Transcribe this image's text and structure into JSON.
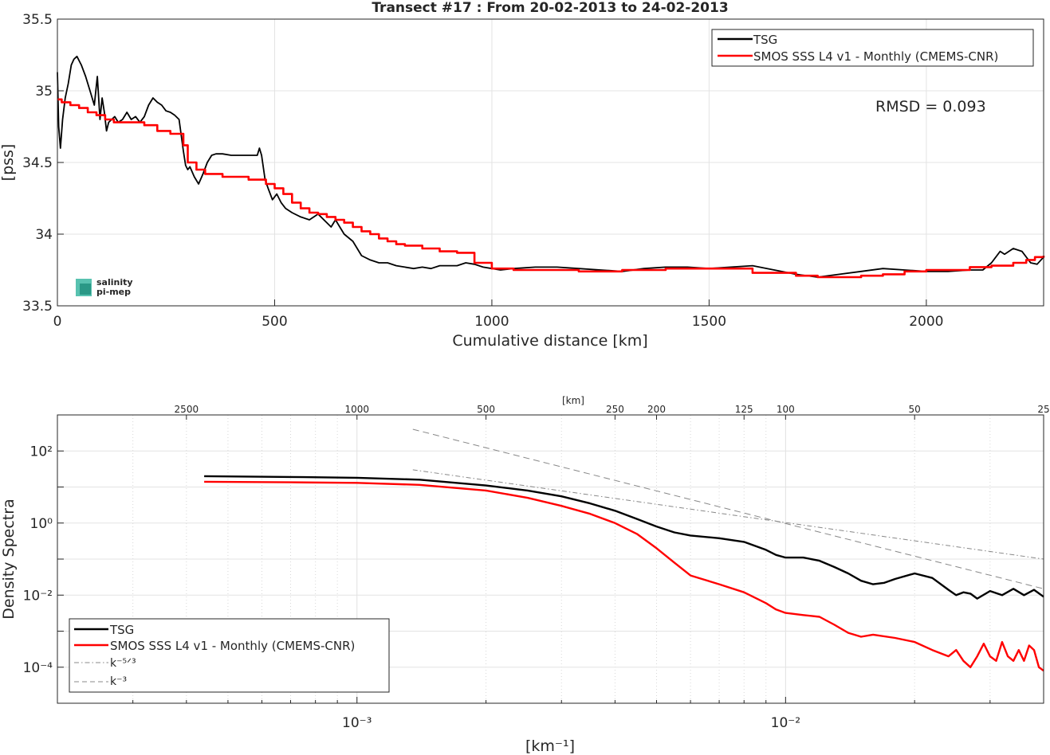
{
  "chart_data": [
    {
      "type": "line",
      "title": "Transect #17 : From 20-02-2013 to 24-02-2013",
      "xlabel": "Cumulative distance [km]",
      "ylabel": "[pss]",
      "xlim": [
        0,
        2270
      ],
      "ylim": [
        33.5,
        35.5
      ],
      "xticks": [
        0,
        500,
        1000,
        1500,
        2000
      ],
      "xtick_labels": [
        "0",
        "500",
        "1000",
        "1500",
        "2000"
      ],
      "yticks": [
        33.5,
        34,
        34.5,
        35,
        35.5
      ],
      "ytick_labels": [
        "33.5",
        "34",
        "34.5",
        "35",
        "35.5"
      ],
      "grid": true,
      "legend_position": "top-right",
      "annotation": "RMSD = 0.093",
      "logo_lines": [
        "salinity",
        "pi-mep"
      ],
      "series": [
        {
          "name": "TSG",
          "color": "#000000",
          "step": false,
          "x": [
            0,
            3,
            7,
            12,
            18,
            25,
            32,
            38,
            45,
            55,
            65,
            75,
            85,
            92,
            98,
            103,
            108,
            113,
            118,
            125,
            132,
            140,
            150,
            160,
            170,
            180,
            190,
            200,
            210,
            220,
            230,
            240,
            250,
            260,
            270,
            280,
            290,
            295,
            300,
            305,
            315,
            325,
            335,
            345,
            355,
            365,
            380,
            400,
            420,
            440,
            460,
            465,
            470,
            478,
            485,
            495,
            505,
            515,
            525,
            540,
            560,
            580,
            600,
            620,
            630,
            640,
            650,
            660,
            680,
            700,
            720,
            740,
            760,
            780,
            800,
            820,
            840,
            860,
            880,
            900,
            920,
            940,
            960,
            980,
            1000,
            1020,
            1050,
            1100,
            1150,
            1200,
            1250,
            1300,
            1350,
            1400,
            1450,
            1500,
            1550,
            1600,
            1650,
            1700,
            1750,
            1800,
            1850,
            1900,
            1950,
            2000,
            2050,
            2100,
            2130,
            2150,
            2170,
            2180,
            2200,
            2220,
            2240,
            2255,
            2270
          ],
          "y": [
            35.13,
            34.75,
            34.6,
            34.8,
            34.95,
            35.05,
            35.18,
            35.22,
            35.24,
            35.18,
            35.1,
            35.0,
            34.9,
            35.1,
            34.8,
            34.95,
            34.85,
            34.72,
            34.78,
            34.8,
            34.82,
            34.78,
            34.8,
            34.85,
            34.8,
            34.82,
            34.78,
            34.82,
            34.9,
            34.95,
            34.92,
            34.9,
            34.86,
            34.85,
            34.83,
            34.8,
            34.58,
            34.48,
            34.45,
            34.47,
            34.4,
            34.35,
            34.42,
            34.5,
            34.55,
            34.56,
            34.56,
            34.55,
            34.55,
            34.55,
            34.55,
            34.6,
            34.55,
            34.38,
            34.32,
            34.24,
            34.28,
            34.22,
            34.18,
            34.15,
            34.12,
            34.1,
            34.14,
            34.08,
            34.05,
            34.1,
            34.05,
            34.0,
            33.95,
            33.85,
            33.82,
            33.8,
            33.8,
            33.78,
            33.77,
            33.76,
            33.77,
            33.76,
            33.78,
            33.78,
            33.78,
            33.8,
            33.79,
            33.77,
            33.76,
            33.75,
            33.76,
            33.77,
            33.77,
            33.76,
            33.75,
            33.74,
            33.76,
            33.77,
            33.77,
            33.76,
            33.77,
            33.78,
            33.75,
            33.72,
            33.7,
            33.72,
            33.74,
            33.76,
            33.75,
            33.74,
            33.74,
            33.75,
            33.75,
            33.8,
            33.88,
            33.86,
            33.9,
            33.88,
            33.8,
            33.79,
            33.84
          ]
        },
        {
          "name": "SMOS SSS L4 v1 - Monthly (CMEMS-CNR)",
          "color": "#ff0000",
          "step": true,
          "x": [
            0,
            10,
            30,
            50,
            70,
            90,
            110,
            130,
            160,
            200,
            230,
            260,
            290,
            300,
            320,
            340,
            380,
            440,
            480,
            500,
            520,
            540,
            560,
            580,
            600,
            620,
            640,
            660,
            680,
            700,
            720,
            740,
            760,
            780,
            800,
            840,
            880,
            920,
            960,
            1000,
            1050,
            1100,
            1200,
            1300,
            1400,
            1500,
            1600,
            1700,
            1750,
            1800,
            1850,
            1900,
            1950,
            2000,
            2050,
            2100,
            2150,
            2200,
            2230,
            2250,
            2270
          ],
          "y": [
            34.94,
            34.92,
            34.9,
            34.88,
            34.85,
            34.83,
            34.8,
            34.78,
            34.78,
            34.76,
            34.72,
            34.7,
            34.62,
            34.5,
            34.45,
            34.42,
            34.4,
            34.38,
            34.35,
            34.32,
            34.28,
            34.22,
            34.18,
            34.15,
            34.14,
            34.12,
            34.1,
            34.08,
            34.05,
            34.02,
            34.0,
            33.97,
            33.95,
            33.93,
            33.92,
            33.9,
            33.88,
            33.87,
            33.8,
            33.76,
            33.75,
            33.75,
            33.74,
            33.75,
            33.76,
            33.76,
            33.73,
            33.71,
            33.7,
            33.7,
            33.71,
            33.72,
            33.74,
            33.75,
            33.75,
            33.77,
            33.78,
            33.8,
            33.82,
            33.84,
            33.85
          ]
        }
      ]
    },
    {
      "type": "line",
      "title": "",
      "xlabel": "[km⁻¹]",
      "ylabel": "Density Spectra",
      "top_axis_label": "[km]",
      "xscale": "log",
      "yscale": "log",
      "xlim": [
        0.0002,
        0.04
      ],
      "ylim": [
        1e-05,
        1000
      ],
      "xtick_labels": [
        "10⁻³",
        "10⁻²"
      ],
      "xticks": [
        0.001,
        0.01
      ],
      "ytick_labels": [
        "10⁻⁴",
        "10⁻²",
        "10⁰",
        "10²"
      ],
      "yticks": [
        0.0001,
        0.01,
        1,
        100
      ],
      "top_ticks_km": [
        2500,
        1000,
        500,
        250,
        200,
        125,
        100,
        50,
        25
      ],
      "top_tick_labels": [
        "2500",
        "1000",
        "500",
        "250",
        "200",
        "125",
        "100",
        "50",
        "25"
      ],
      "grid": true,
      "legend_position": "bottom-left",
      "series": [
        {
          "name": "TSG",
          "color": "#000000",
          "x": [
            0.00044,
            0.0007,
            0.001,
            0.0014,
            0.002,
            0.0025,
            0.003,
            0.0035,
            0.004,
            0.0045,
            0.005,
            0.0055,
            0.006,
            0.007,
            0.008,
            0.009,
            0.0095,
            0.01,
            0.011,
            0.012,
            0.013,
            0.014,
            0.015,
            0.016,
            0.017,
            0.018,
            0.02,
            0.022,
            0.024,
            0.025,
            0.026,
            0.027,
            0.028,
            0.03,
            0.032,
            0.034,
            0.036,
            0.038,
            0.04
          ],
          "y": [
            20,
            19,
            18,
            16,
            11,
            8,
            5.5,
            3.5,
            2.2,
            1.3,
            0.8,
            0.55,
            0.45,
            0.38,
            0.3,
            0.18,
            0.13,
            0.11,
            0.11,
            0.09,
            0.06,
            0.04,
            0.025,
            0.02,
            0.022,
            0.028,
            0.04,
            0.03,
            0.014,
            0.01,
            0.012,
            0.011,
            0.008,
            0.013,
            0.01,
            0.015,
            0.01,
            0.014,
            0.009
          ]
        },
        {
          "name": "SMOS SSS L4 v1 - Monthly (CMEMS-CNR)",
          "color": "#ff0000",
          "x": [
            0.00044,
            0.0007,
            0.001,
            0.0014,
            0.002,
            0.0025,
            0.003,
            0.0035,
            0.004,
            0.0045,
            0.005,
            0.0055,
            0.006,
            0.007,
            0.008,
            0.009,
            0.0095,
            0.01,
            0.011,
            0.012,
            0.013,
            0.014,
            0.015,
            0.016,
            0.018,
            0.02,
            0.022,
            0.024,
            0.025,
            0.026,
            0.027,
            0.028,
            0.029,
            0.03,
            0.031,
            0.032,
            0.033,
            0.034,
            0.035,
            0.036,
            0.037,
            0.038,
            0.039,
            0.04
          ],
          "y": [
            14,
            13.5,
            13,
            11.5,
            8,
            5,
            3,
            1.8,
            1.0,
            0.5,
            0.2,
            0.08,
            0.035,
            0.02,
            0.012,
            0.006,
            0.004,
            0.0032,
            0.0028,
            0.0025,
            0.0015,
            0.0009,
            0.0007,
            0.0008,
            0.00065,
            0.0005,
            0.0003,
            0.0002,
            0.0003,
            0.00015,
            0.0001,
            0.0002,
            0.00045,
            0.0002,
            0.00015,
            0.0005,
            0.0002,
            0.00015,
            0.0003,
            0.00015,
            0.0004,
            0.0003,
            0.0001,
            8e-05
          ]
        },
        {
          "name": "k⁻⁵ᐟ³",
          "color": "#888888",
          "dash": "dash-dot",
          "x": [
            0.00135,
            0.04
          ],
          "y": [
            30,
            0.1
          ]
        },
        {
          "name": "k⁻³",
          "color": "#888888",
          "dash": "dashed",
          "x": [
            0.00135,
            0.04
          ],
          "y": [
            400,
            0.015
          ]
        }
      ]
    }
  ]
}
